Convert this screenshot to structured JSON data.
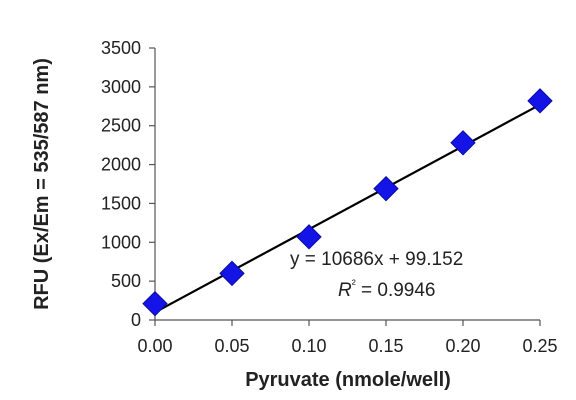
{
  "chart_data": {
    "type": "scatter",
    "title": "",
    "xlabel": "Pyruvate (nmole/well)",
    "ylabel": "RFU (Ex/Em = 535/587 nm)",
    "xlim": [
      0,
      0.25
    ],
    "ylim": [
      0,
      3500
    ],
    "x_ticks": [
      "0.00",
      "0.05",
      "0.10",
      "0.15",
      "0.20",
      "0.25"
    ],
    "y_ticks": [
      "0",
      "500",
      "1000",
      "1500",
      "2000",
      "2500",
      "3000",
      "3500"
    ],
    "grid": false,
    "legend": "none",
    "series": [
      {
        "marker": "diamond",
        "color": "#1414e6",
        "points": [
          {
            "x": 0.0,
            "y": 210
          },
          {
            "x": 0.05,
            "y": 600
          },
          {
            "x": 0.1,
            "y": 1070
          },
          {
            "x": 0.15,
            "y": 1690
          },
          {
            "x": 0.2,
            "y": 2280
          },
          {
            "x": 0.25,
            "y": 2820
          }
        ]
      }
    ],
    "trendline": {
      "type": "linear",
      "slope": 10686,
      "intercept": 99.152,
      "color": "#000000",
      "x_range": [
        0,
        0.25
      ]
    },
    "annotations": {
      "equation": "y = 10686x + 99.152",
      "r_squared_prefix": "R",
      "r_squared_sup": "²",
      "r_squared_value": " = 0.9946"
    }
  }
}
